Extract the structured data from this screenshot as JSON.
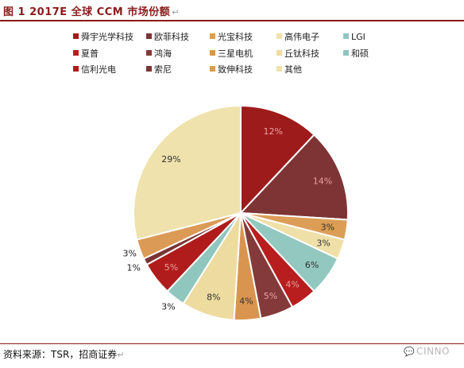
{
  "figure": {
    "caption": "图 1 2017E 全球 CCM 市场份额",
    "source": "资料来源：TSR，招商证券",
    "paragraph_mark": "↵",
    "watermark": "CINNO",
    "watermark_icon": "speech-bubble-icon"
  },
  "chart_data": {
    "type": "pie",
    "title": "",
    "categories": [
      "舜宇光学科技",
      "欧菲科技",
      "光宝科技",
      "高伟电子",
      "LGI",
      "夏普",
      "鸿海",
      "三星电机",
      "丘钛科技",
      "和硕",
      "信利光电",
      "索尼",
      "致伸科技",
      "其他"
    ],
    "values": [
      12,
      14,
      3,
      3,
      6,
      4,
      5,
      4,
      8,
      3,
      5,
      1,
      3,
      29
    ],
    "labels": [
      "12%",
      "14%",
      "3%",
      "3%",
      "6%",
      "4%",
      "5%",
      "4%",
      "8%",
      "3%",
      "5%",
      "1%",
      "3%",
      "29%"
    ],
    "colors": [
      "#9e1b1b",
      "#7e3434",
      "#dc9d57",
      "#efe0a8",
      "#92c8bf",
      "#b81e1e",
      "#843a3a",
      "#d9954f",
      "#eddba0",
      "#8fc6bd",
      "#b01c1c",
      "#7a3535",
      "#db9a55",
      "#efe2ac"
    ],
    "legend": {
      "position": "top",
      "columns": 5
    },
    "start_angle": "12 o'clock",
    "direction": "clockwise"
  }
}
